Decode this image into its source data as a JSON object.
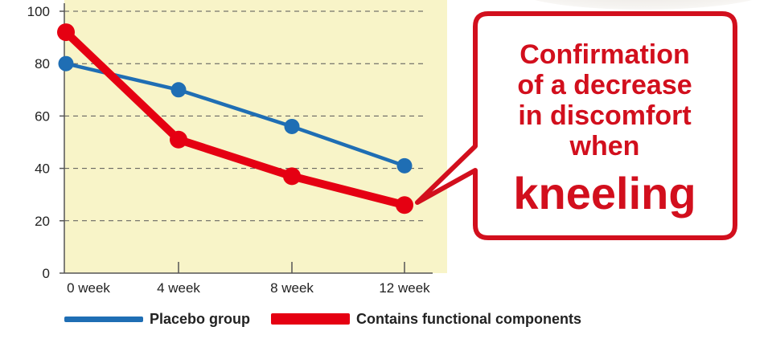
{
  "chart_data": {
    "type": "line",
    "categories": [
      "0 week",
      "4 week",
      "8 week",
      "12 week"
    ],
    "ylim": [
      0,
      100
    ],
    "yticks": [
      0,
      20,
      40,
      60,
      80,
      100
    ],
    "grid": true,
    "legend_position": "bottom",
    "series": [
      {
        "name": "Placebo group",
        "values": [
          80,
          70,
          56,
          41
        ],
        "color": "#1f6eb4"
      },
      {
        "name": "Contains functional components",
        "values": [
          92,
          51,
          37,
          26
        ],
        "color": "#e50012"
      }
    ],
    "annotation": {
      "lines": [
        "Confirmation",
        "of a decrease",
        "in discomfort",
        "when",
        "kneeling"
      ],
      "color": "#d20f1d",
      "points_to": {
        "series": "Contains functional components",
        "category": "12 week"
      }
    }
  },
  "colors": {
    "plot_background": "#f8f4c8",
    "axis": "#555555",
    "grid": "#555555",
    "callout_border": "#d20f1d"
  }
}
